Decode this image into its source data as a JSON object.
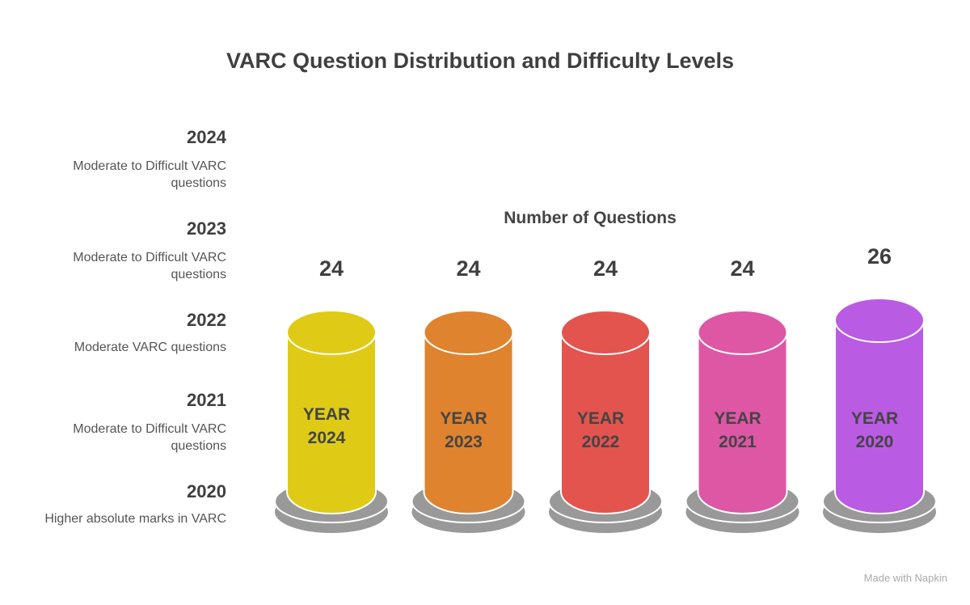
{
  "title": "VARC Question Distribution and Difficulty Levels",
  "legend": [
    {
      "year": "2024",
      "desc": "Moderate to Difficult VARC questions"
    },
    {
      "year": "2023",
      "desc": "Moderate to Difficult VARC questions"
    },
    {
      "year": "2022",
      "desc": "Moderate VARC questions"
    },
    {
      "year": "2021",
      "desc": "Moderate to Difficult VARC questions"
    },
    {
      "year": "2020",
      "desc": "Higher absolute marks in VARC"
    }
  ],
  "footer": "Made with Napkin",
  "chart_data": {
    "type": "bar",
    "title": "VARC Question Distribution and Difficulty Levels",
    "ylabel": "Number of Questions",
    "categories": [
      "YEAR 2024",
      "YEAR 2023",
      "YEAR 2022",
      "YEAR 2021",
      "YEAR 2020"
    ],
    "values": [
      24,
      24,
      24,
      24,
      26
    ],
    "colors": [
      "#dfcb16",
      "#df832e",
      "#e4544f",
      "#dd57a5",
      "#b95ce3"
    ]
  }
}
